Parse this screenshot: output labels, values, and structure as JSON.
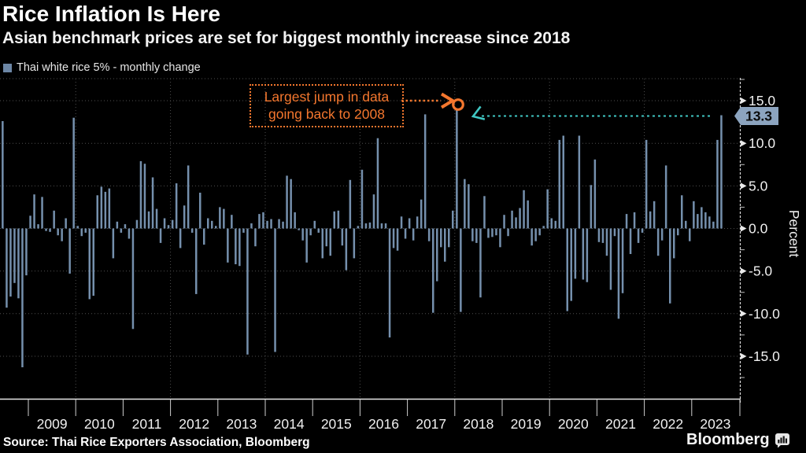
{
  "header": {
    "title": "Rice Inflation Is Here",
    "subtitle": "Asian benchmark prices are set for biggest monthly increase since 2018"
  },
  "legend": {
    "label": "Thai white rice 5% - monthly change",
    "swatch_color": "#6d87a6"
  },
  "annotation": {
    "line1": "Largest jump in data",
    "line2": "going back to 2008"
  },
  "flag": {
    "value": "13.3"
  },
  "y_axis": {
    "label": "Percent",
    "major_ticks": [
      "15.0",
      "10.0",
      "5.0",
      "0.0",
      "-5.0",
      "-10.0",
      "-15.0"
    ],
    "major_values": [
      15,
      10,
      5,
      0,
      -5,
      -10,
      -15
    ],
    "minor_values": [
      17.5,
      12.5,
      7.5,
      2.5,
      -2.5,
      -7.5,
      -12.5,
      -17.5
    ]
  },
  "x_axis": {
    "years": [
      "2009",
      "2010",
      "2011",
      "2012",
      "2013",
      "2014",
      "2015",
      "2016",
      "2017",
      "2018",
      "2019",
      "2020",
      "2021",
      "2022",
      "2023"
    ],
    "gridline_years": [
      2010,
      2012,
      2014,
      2016,
      2018,
      2020,
      2022
    ]
  },
  "source": "Source: Thai Rice Exporters Association, Bloomberg",
  "brand": "Bloomberg",
  "colors": {
    "bar": "#7590ad",
    "accent_orange": "#f4772e",
    "accent_cyan": "#40c8c4",
    "flag_bg": "#8ca4bf",
    "grid": "#4f4f4f",
    "axis": "#e6e6e6",
    "text": "#f0f0f0"
  },
  "chart_data": {
    "type": "bar",
    "title": "Rice Inflation Is Here",
    "series_name": "Thai white rice 5% - monthly change",
    "ylabel": "Percent",
    "ylim": [
      -20,
      17.5
    ],
    "grid": "dotted",
    "legend_position": "top-left",
    "start_month": "2008-06",
    "end_month": "2023-08",
    "first_month_2008": 6,
    "values_by_year": {
      "2008": [
        12.6,
        -9.3,
        -8.0,
        -6.4,
        -8.2,
        -16.3,
        -5.5
      ],
      "2009": [
        1.5,
        4.0,
        0.5,
        3.7,
        -0.3,
        -0.4,
        2.1,
        -0.8,
        -1.5,
        1.2,
        -5.3,
        13.0
      ],
      "2010": [
        0.3,
        -0.9,
        -0.5,
        -8.3,
        -7.9,
        3.9,
        4.9,
        4.3,
        4.7,
        -3.5,
        0.8,
        -0.5
      ],
      "2011": [
        0.5,
        -1.2,
        -11.8,
        1.0,
        7.9,
        7.6,
        2.0,
        6.0,
        2.3,
        -1.7,
        1.2,
        0.4
      ],
      "2012": [
        1.0,
        5.3,
        -2.3,
        2.7,
        7.4,
        -0.5,
        -7.7,
        4.2,
        -1.9,
        1.2,
        0.9,
        0.3
      ],
      "2013": [
        2.5,
        2.3,
        -4.0,
        1.6,
        -4.2,
        -4.4,
        -0.5,
        -14.8,
        0.6,
        -2.1,
        1.7,
        1.9
      ],
      "2014": [
        0.9,
        1.1,
        -14.5,
        1.1,
        0.8,
        6.2,
        5.8,
        1.9,
        -0.2,
        -1.4,
        -4.0,
        -0.8
      ],
      "2015": [
        0.9,
        -0.5,
        -3.5,
        -2.1,
        -3.2,
        2.0,
        2.1,
        -2.0,
        -4.9,
        5.7,
        -3.5,
        0.3
      ],
      "2016": [
        6.9,
        0.6,
        0.7,
        4.0,
        10.6,
        0.6,
        0.6,
        -12.8,
        -2.3,
        -2.6,
        1.4,
        -1.2
      ],
      "2017": [
        1.2,
        -1.4,
        1.4,
        3.4,
        13.4,
        -1.5,
        -9.9,
        -6.2,
        -2.2,
        -3.9,
        -2.2,
        2.1
      ],
      "2018": [
        13.9,
        -9.8,
        5.8,
        5.2,
        -1.5,
        -1.7,
        -8.1,
        3.8,
        -1.1,
        -1.0,
        -0.8,
        -2.2
      ],
      "2019": [
        1.6,
        -0.9,
        2.1,
        1.3,
        2.4,
        4.5,
        3.3,
        -2.0,
        -1.5,
        -0.8,
        0.3,
        4.6
      ],
      "2020": [
        1.2,
        0.9,
        10.4,
        10.9,
        -9.7,
        -8.5,
        -5.9,
        10.9,
        -6.0,
        -6.3,
        5.1,
        8.1
      ],
      "2021": [
        -1.6,
        -1.7,
        -3.2,
        -7.2,
        -0.9,
        -10.6,
        -7.6,
        1.7,
        -3.0,
        1.9,
        -1.7,
        -0.5
      ],
      "2022": [
        10.4,
        2.0,
        3.2,
        -3.2,
        -1.4,
        7.4,
        -8.8,
        -3.5,
        -0.8,
        3.9,
        0.9,
        -1.5
      ],
      "2023": [
        3.2,
        1.7,
        2.5,
        1.9,
        1.4,
        0.8,
        10.4,
        13.3
      ]
    },
    "annotations": [
      {
        "text": "Largest jump in data going back to 2008",
        "points_to_month": "2018-01",
        "points_to_value": 13.9
      },
      {
        "text": "13.3",
        "type": "last-value-flag",
        "month": "2023-08",
        "value": 13.3
      }
    ]
  }
}
